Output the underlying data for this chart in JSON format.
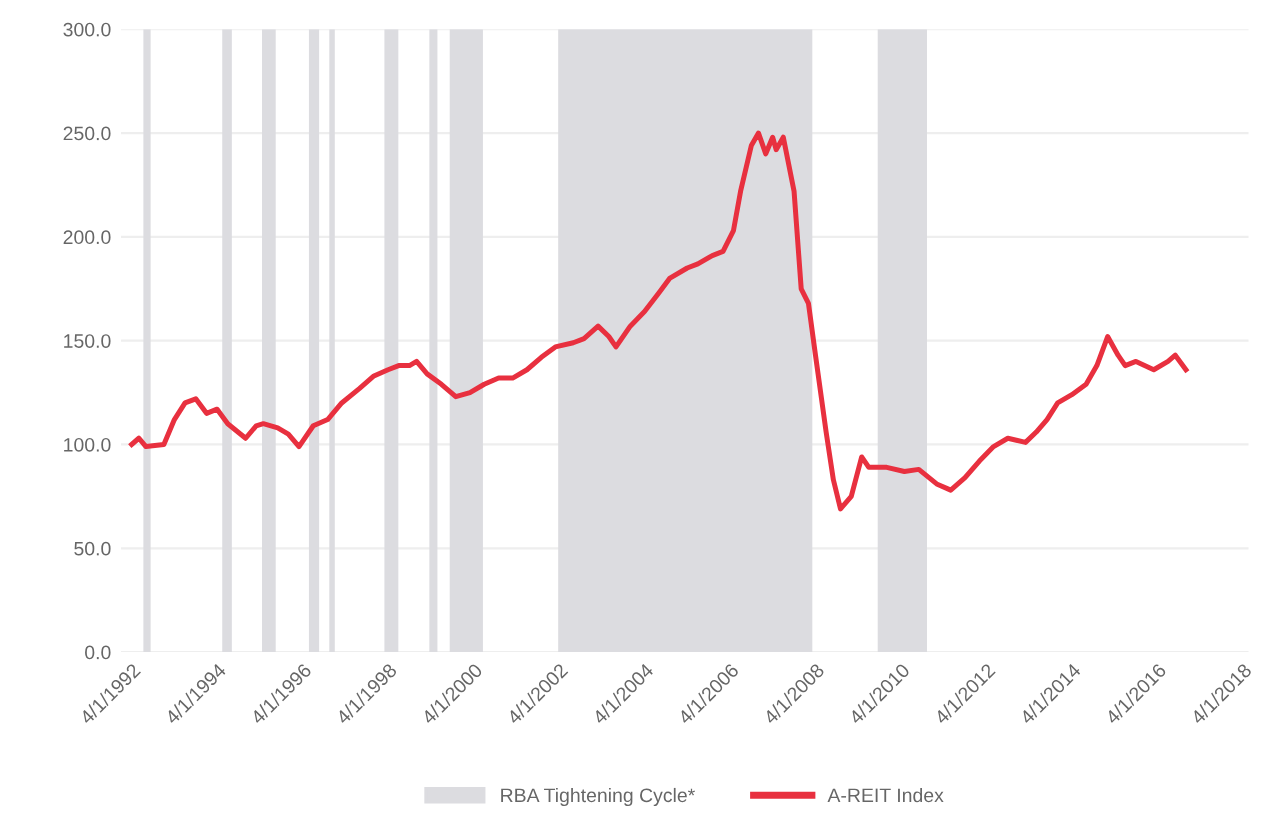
{
  "chart_data": {
    "type": "line",
    "legend": "bottom",
    "grid": "y",
    "xlim": [
      "1992-01-01",
      "2018-05-20"
    ],
    "ylim": [
      0,
      300
    ],
    "xticks": [
      {
        "value": "1992-04-01",
        "label": "4/1/1992"
      },
      {
        "value": "1994-04-01",
        "label": "4/1/1994"
      },
      {
        "value": "1996-04-01",
        "label": "4/1/1996"
      },
      {
        "value": "1998-04-01",
        "label": "4/1/1998"
      },
      {
        "value": "2000-04-01",
        "label": "4/1/2000"
      },
      {
        "value": "2002-04-01",
        "label": "4/1/2002"
      },
      {
        "value": "2004-04-01",
        "label": "4/1/2004"
      },
      {
        "value": "2006-04-01",
        "label": "4/1/2006"
      },
      {
        "value": "2008-04-01",
        "label": "4/1/2008"
      },
      {
        "value": "2010-04-01",
        "label": "4/1/2010"
      },
      {
        "value": "2012-04-01",
        "label": "4/1/2012"
      },
      {
        "value": "2014-04-01",
        "label": "4/1/2014"
      },
      {
        "value": "2016-04-01",
        "label": "4/1/2016"
      },
      {
        "value": "2018-04-01",
        "label": "4/1/2018"
      }
    ],
    "yticks": [
      {
        "value": 0,
        "label": "0.0"
      },
      {
        "value": 50,
        "label": "50.0"
      },
      {
        "value": 100,
        "label": "100.0"
      },
      {
        "value": 150,
        "label": "150.0"
      },
      {
        "value": 200,
        "label": "200.0"
      },
      {
        "value": 250,
        "label": "250.0"
      },
      {
        "value": 300,
        "label": "300.0"
      }
    ],
    "bands": [
      {
        "axis": "x",
        "from": "1992-07-10",
        "to": "1992-09-10",
        "label": "RBA Tightening Cycle*",
        "color": "#dcdce0"
      },
      {
        "axis": "x",
        "from": "1994-05-15",
        "to": "1994-08-05",
        "color": "#dcdce0"
      },
      {
        "axis": "x",
        "from": "1995-04-20",
        "to": "1995-08-15",
        "color": "#dcdce0"
      },
      {
        "axis": "x",
        "from": "1996-05-25",
        "to": "1996-08-20",
        "color": "#dcdce0"
      },
      {
        "axis": "x",
        "from": "1996-11-15",
        "to": "1997-01-01",
        "color": "#dcdce0"
      },
      {
        "axis": "x",
        "from": "1998-03-01",
        "to": "1998-06-28",
        "color": "#dcdce0"
      },
      {
        "axis": "x",
        "from": "1999-03-20",
        "to": "1999-05-28",
        "color": "#dcdce0"
      },
      {
        "axis": "x",
        "from": "1999-09-10",
        "to": "2000-06-20",
        "color": "#dcdce0"
      },
      {
        "axis": "x",
        "from": "2002-03-25",
        "to": "2008-03-05",
        "color": "#dcdce0"
      },
      {
        "axis": "x",
        "from": "2009-09-15",
        "to": "2010-11-10",
        "color": "#dcdce0"
      }
    ],
    "series": [
      {
        "name": "A-REIT Index",
        "color": "#e8303f",
        "x": [
          "1992-04",
          "1992-06",
          "1992-08",
          "1993-01",
          "1993-04",
          "1993-07",
          "1993-10",
          "1994-01",
          "1994-04",
          "1994-07",
          "1994-12",
          "1995-03",
          "1995-05",
          "1995-09",
          "1995-12",
          "1996-03",
          "1996-07",
          "1996-11",
          "1997-03",
          "1997-08",
          "1997-12",
          "1998-04",
          "1998-07",
          "1998-10",
          "1998-12",
          "1999-03",
          "1999-07",
          "1999-11",
          "2000-03",
          "2000-07",
          "2000-11",
          "2001-03",
          "2001-07",
          "2001-11",
          "2002-03",
          "2002-08",
          "2002-11",
          "2003-03",
          "2003-06",
          "2003-08",
          "2003-12",
          "2004-04",
          "2004-08",
          "2004-11",
          "2005-04",
          "2005-07",
          "2005-11",
          "2006-02",
          "2006-05",
          "2006-07",
          "2006-10",
          "2006-12",
          "2007-02",
          "2007-04",
          "2007-05",
          "2007-07",
          "2007-10",
          "2007-12",
          "2008-02",
          "2008-04",
          "2008-07",
          "2008-09",
          "2008-11",
          "2009-02",
          "2009-05",
          "2009-07",
          "2009-12",
          "2010-05",
          "2010-09",
          "2011-02",
          "2011-06",
          "2011-10",
          "2012-02",
          "2012-06",
          "2012-10",
          "2013-03",
          "2013-06",
          "2013-09",
          "2013-12",
          "2014-04",
          "2014-08",
          "2014-11",
          "2015-02",
          "2015-05",
          "2015-07",
          "2015-10",
          "2016-03",
          "2016-07",
          "2016-09",
          "2016-12"
        ],
        "values": [
          100,
          103,
          99,
          100,
          112,
          120,
          122,
          115,
          117,
          110,
          103,
          109,
          110,
          108,
          105,
          99,
          109,
          112,
          120,
          127,
          133,
          136,
          138,
          138,
          140,
          134,
          129,
          123,
          125,
          129,
          132,
          132,
          136,
          142,
          147,
          149,
          151,
          157,
          152,
          147,
          157,
          164,
          173,
          180,
          185,
          187,
          191,
          193,
          203,
          222,
          244,
          250,
          240,
          248,
          242,
          248,
          222,
          175,
          168,
          143,
          106,
          83,
          69,
          75,
          94,
          89,
          89,
          87,
          88,
          81,
          78,
          84,
          92,
          99,
          103,
          101,
          106,
          112,
          120,
          124,
          129,
          138,
          152,
          143,
          138,
          140,
          136,
          140,
          143,
          136
        ]
      }
    ]
  }
}
